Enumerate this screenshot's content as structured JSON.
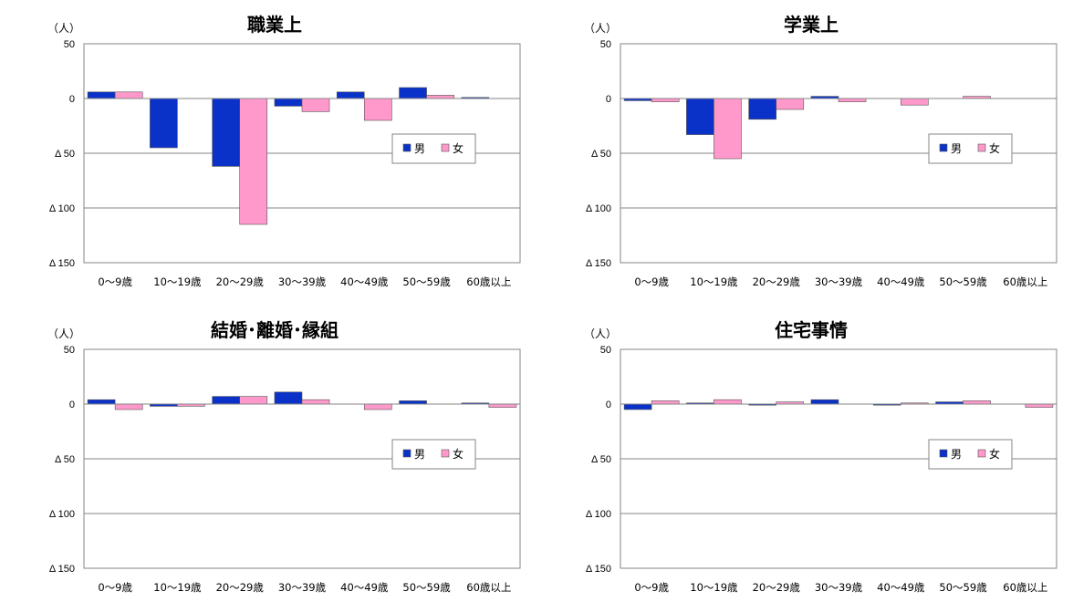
{
  "colors": {
    "male": "#0a32c8",
    "female": "#ff99cc",
    "grid": "#868686",
    "frame": "#868686"
  },
  "chart_data": [
    {
      "type": "bar",
      "title": "職業上",
      "unit": "（人）",
      "categories": [
        "0～9歳",
        "10～19歳",
        "20～29歳",
        "30～39歳",
        "40～49歳",
        "50～59歳",
        "60歳以上"
      ],
      "ytick_labels": [
        "50",
        "0",
        "Δ 50",
        "Δ 100",
        "Δ 150"
      ],
      "ylim": [
        -150,
        50
      ],
      "legend_position": "right-middle",
      "series": [
        {
          "name": "男",
          "values": [
            6,
            -45,
            -62,
            -7,
            6,
            10,
            1
          ]
        },
        {
          "name": "女",
          "values": [
            6,
            0,
            -115,
            -12,
            -20,
            3,
            0
          ]
        }
      ]
    },
    {
      "type": "bar",
      "title": "学業上",
      "unit": "（人）",
      "categories": [
        "0～9歳",
        "10～19歳",
        "20～29歳",
        "30～39歳",
        "40～49歳",
        "50～59歳",
        "60歳以上"
      ],
      "ytick_labels": [
        "50",
        "0",
        "Δ 50",
        "Δ 100",
        "Δ 150"
      ],
      "ylim": [
        -150,
        50
      ],
      "legend_position": "right-middle",
      "series": [
        {
          "name": "男",
          "values": [
            -2,
            -33,
            -19,
            2,
            0,
            0,
            0
          ]
        },
        {
          "name": "女",
          "values": [
            -3,
            -55,
            -10,
            -3,
            -6,
            2,
            0
          ]
        }
      ]
    },
    {
      "type": "bar",
      "title": "結婚･離婚･縁組",
      "unit": "（人）",
      "categories": [
        "0～9歳",
        "10～19歳",
        "20～29歳",
        "30～39歳",
        "40～49歳",
        "50～59歳",
        "60歳以上"
      ],
      "ytick_labels": [
        "50",
        "0",
        "Δ 50",
        "Δ 100",
        "Δ 150"
      ],
      "ylim": [
        -150,
        50
      ],
      "legend_position": "right-middle",
      "series": [
        {
          "name": "男",
          "values": [
            4,
            -2,
            7,
            11,
            0,
            3,
            1
          ]
        },
        {
          "name": "女",
          "values": [
            -5,
            -2,
            7,
            4,
            -5,
            0,
            -3
          ]
        }
      ]
    },
    {
      "type": "bar",
      "title": "住宅事情",
      "unit": "（人）",
      "categories": [
        "0～9歳",
        "10～19歳",
        "20～29歳",
        "30～39歳",
        "40～49歳",
        "50～59歳",
        "60歳以上"
      ],
      "ytick_labels": [
        "50",
        "0",
        "Δ 50",
        "Δ 100",
        "Δ 150"
      ],
      "ylim": [
        -150,
        50
      ],
      "legend_position": "right-middle",
      "series": [
        {
          "name": "男",
          "values": [
            -5,
            1,
            -1,
            4,
            -1,
            2,
            0
          ]
        },
        {
          "name": "女",
          "values": [
            3,
            4,
            2,
            0,
            1,
            3,
            -3
          ]
        }
      ]
    }
  ]
}
